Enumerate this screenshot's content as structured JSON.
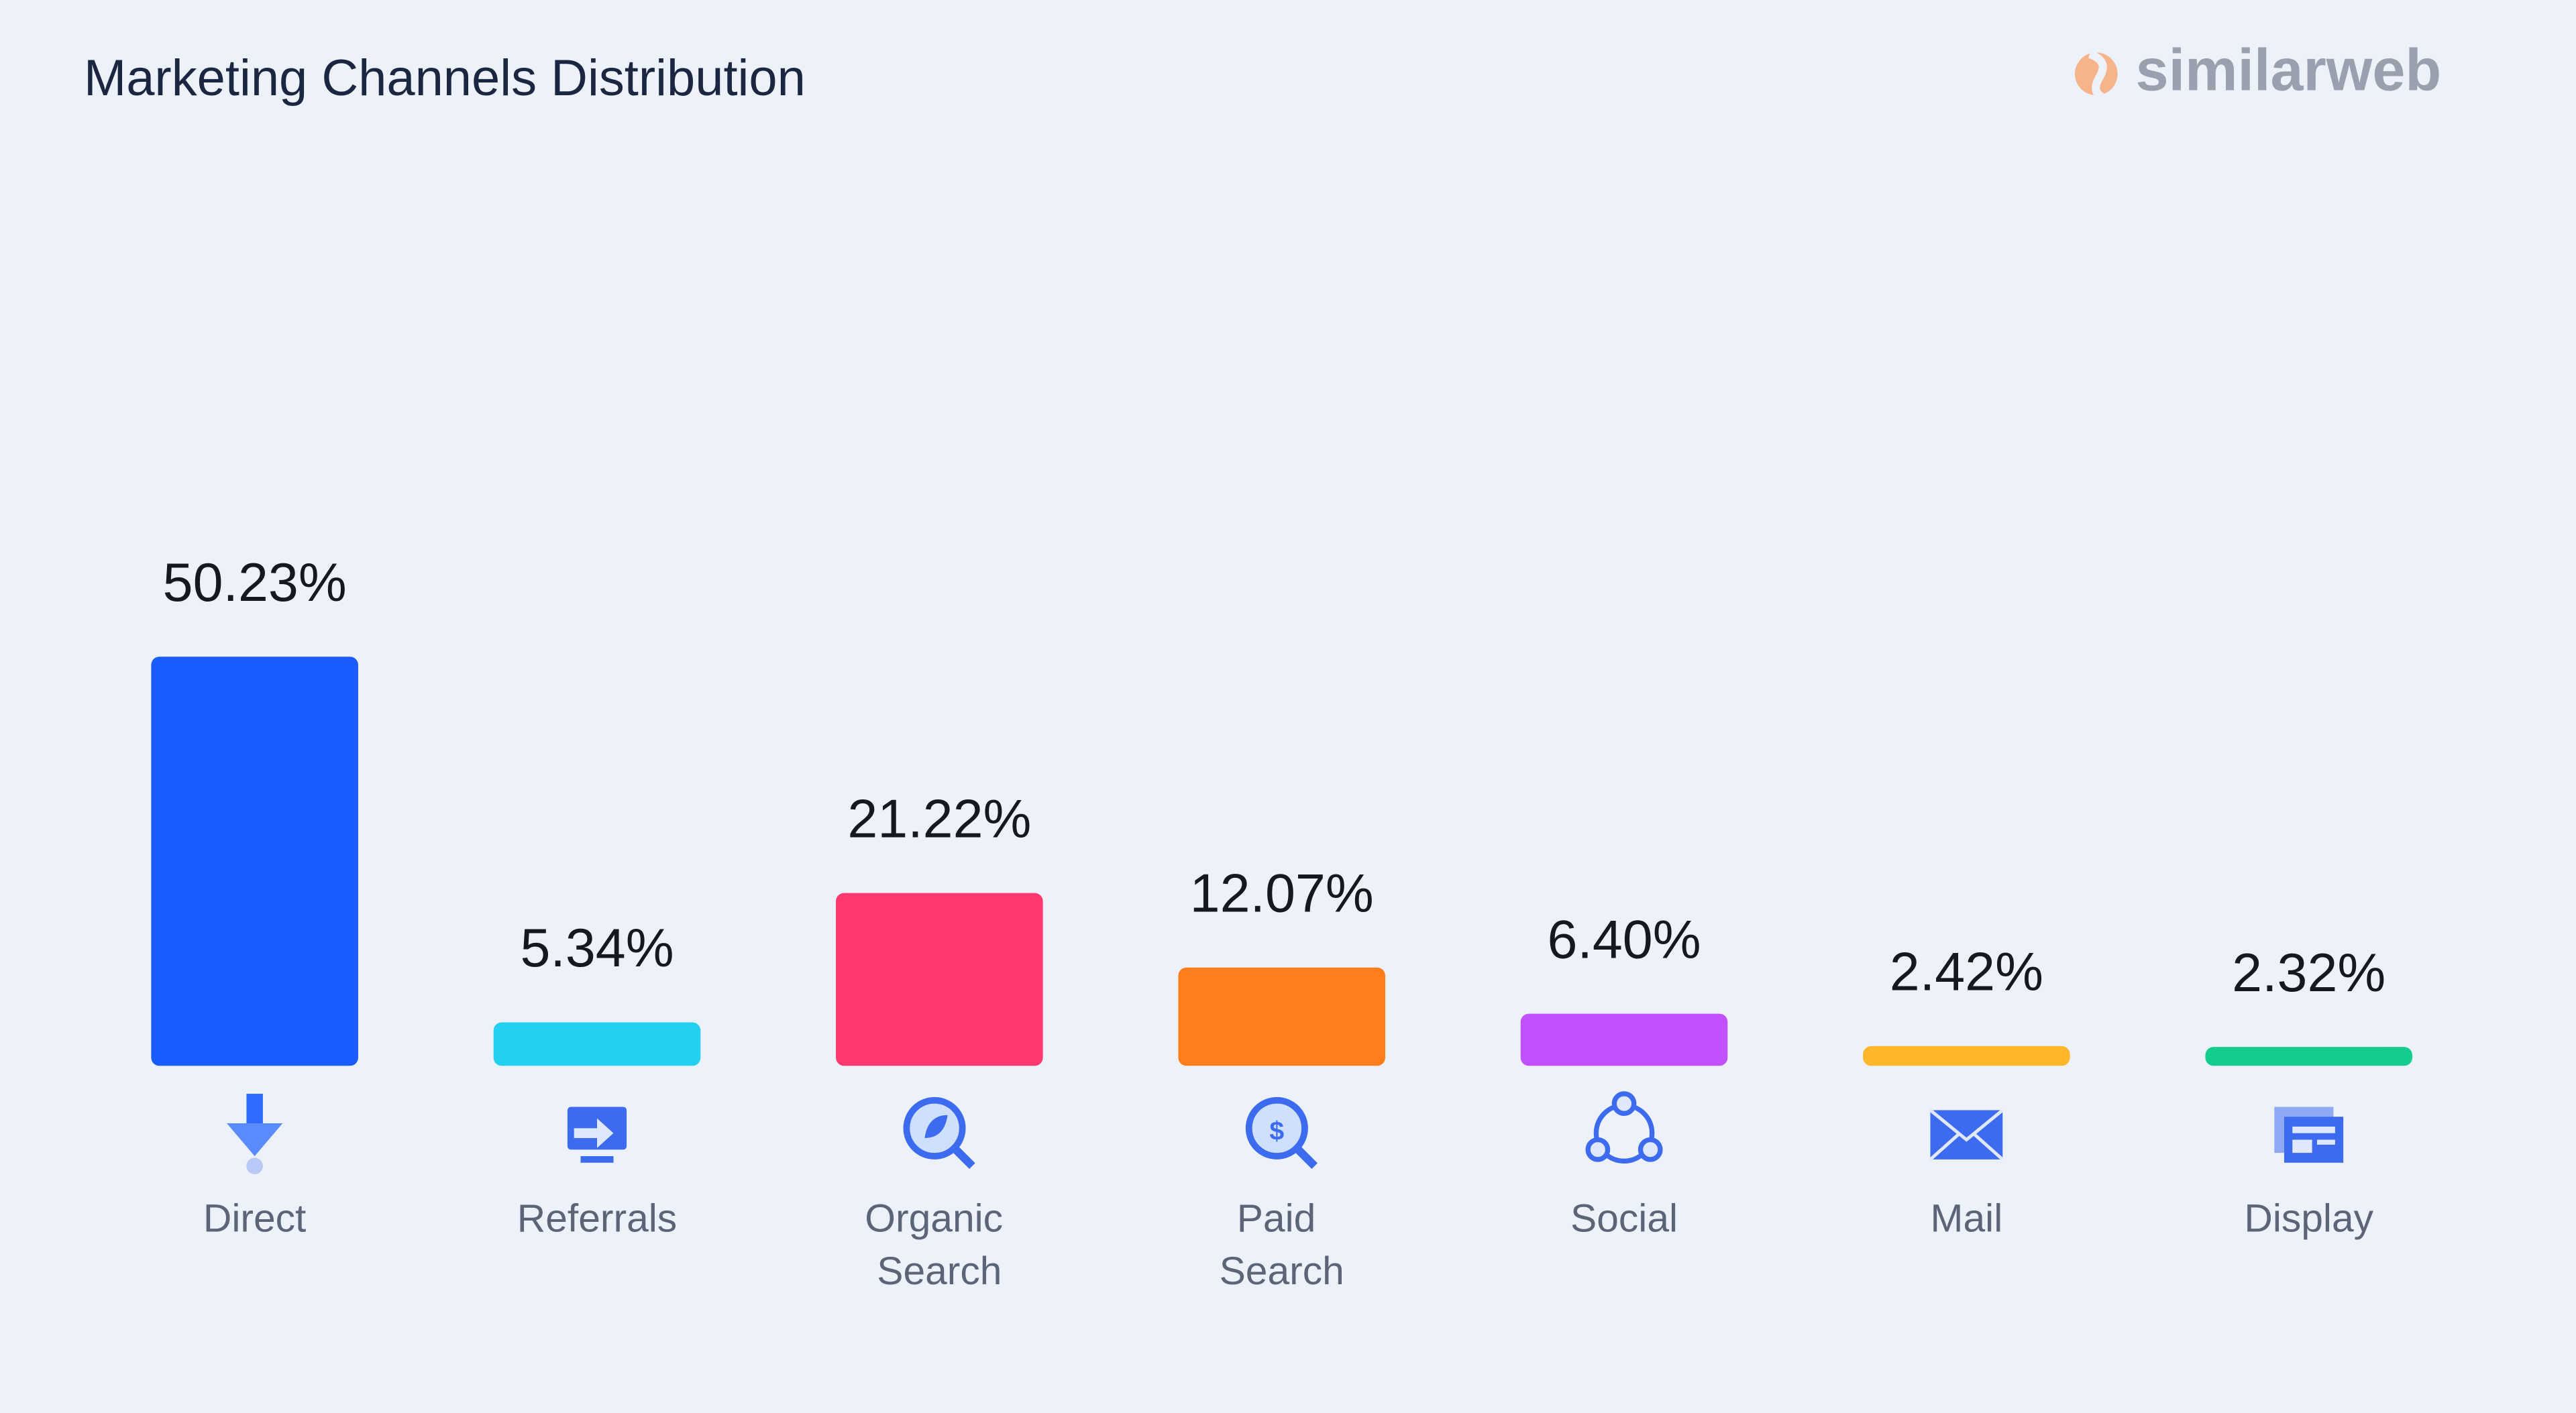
{
  "chart_data": {
    "type": "bar",
    "title": "Marketing Channels Distribution",
    "brand": "similarweb",
    "categories": [
      "Direct",
      "Referrals",
      "Organic Search",
      "Paid Search",
      "Social",
      "Mail",
      "Display"
    ],
    "values": [
      50.23,
      5.34,
      21.22,
      12.07,
      6.4,
      2.42,
      2.32
    ],
    "value_labels": [
      "50.23%",
      "5.34%",
      "21.22%",
      "12.07%",
      "6.40%",
      "2.42%",
      "2.32%"
    ],
    "colors": [
      "#1a5cff",
      "#22d0f0",
      "#ff386e",
      "#ff7d1a",
      "#c150ff",
      "#ffb62a",
      "#14cc8e"
    ],
    "ylim": [
      0,
      100
    ]
  }
}
